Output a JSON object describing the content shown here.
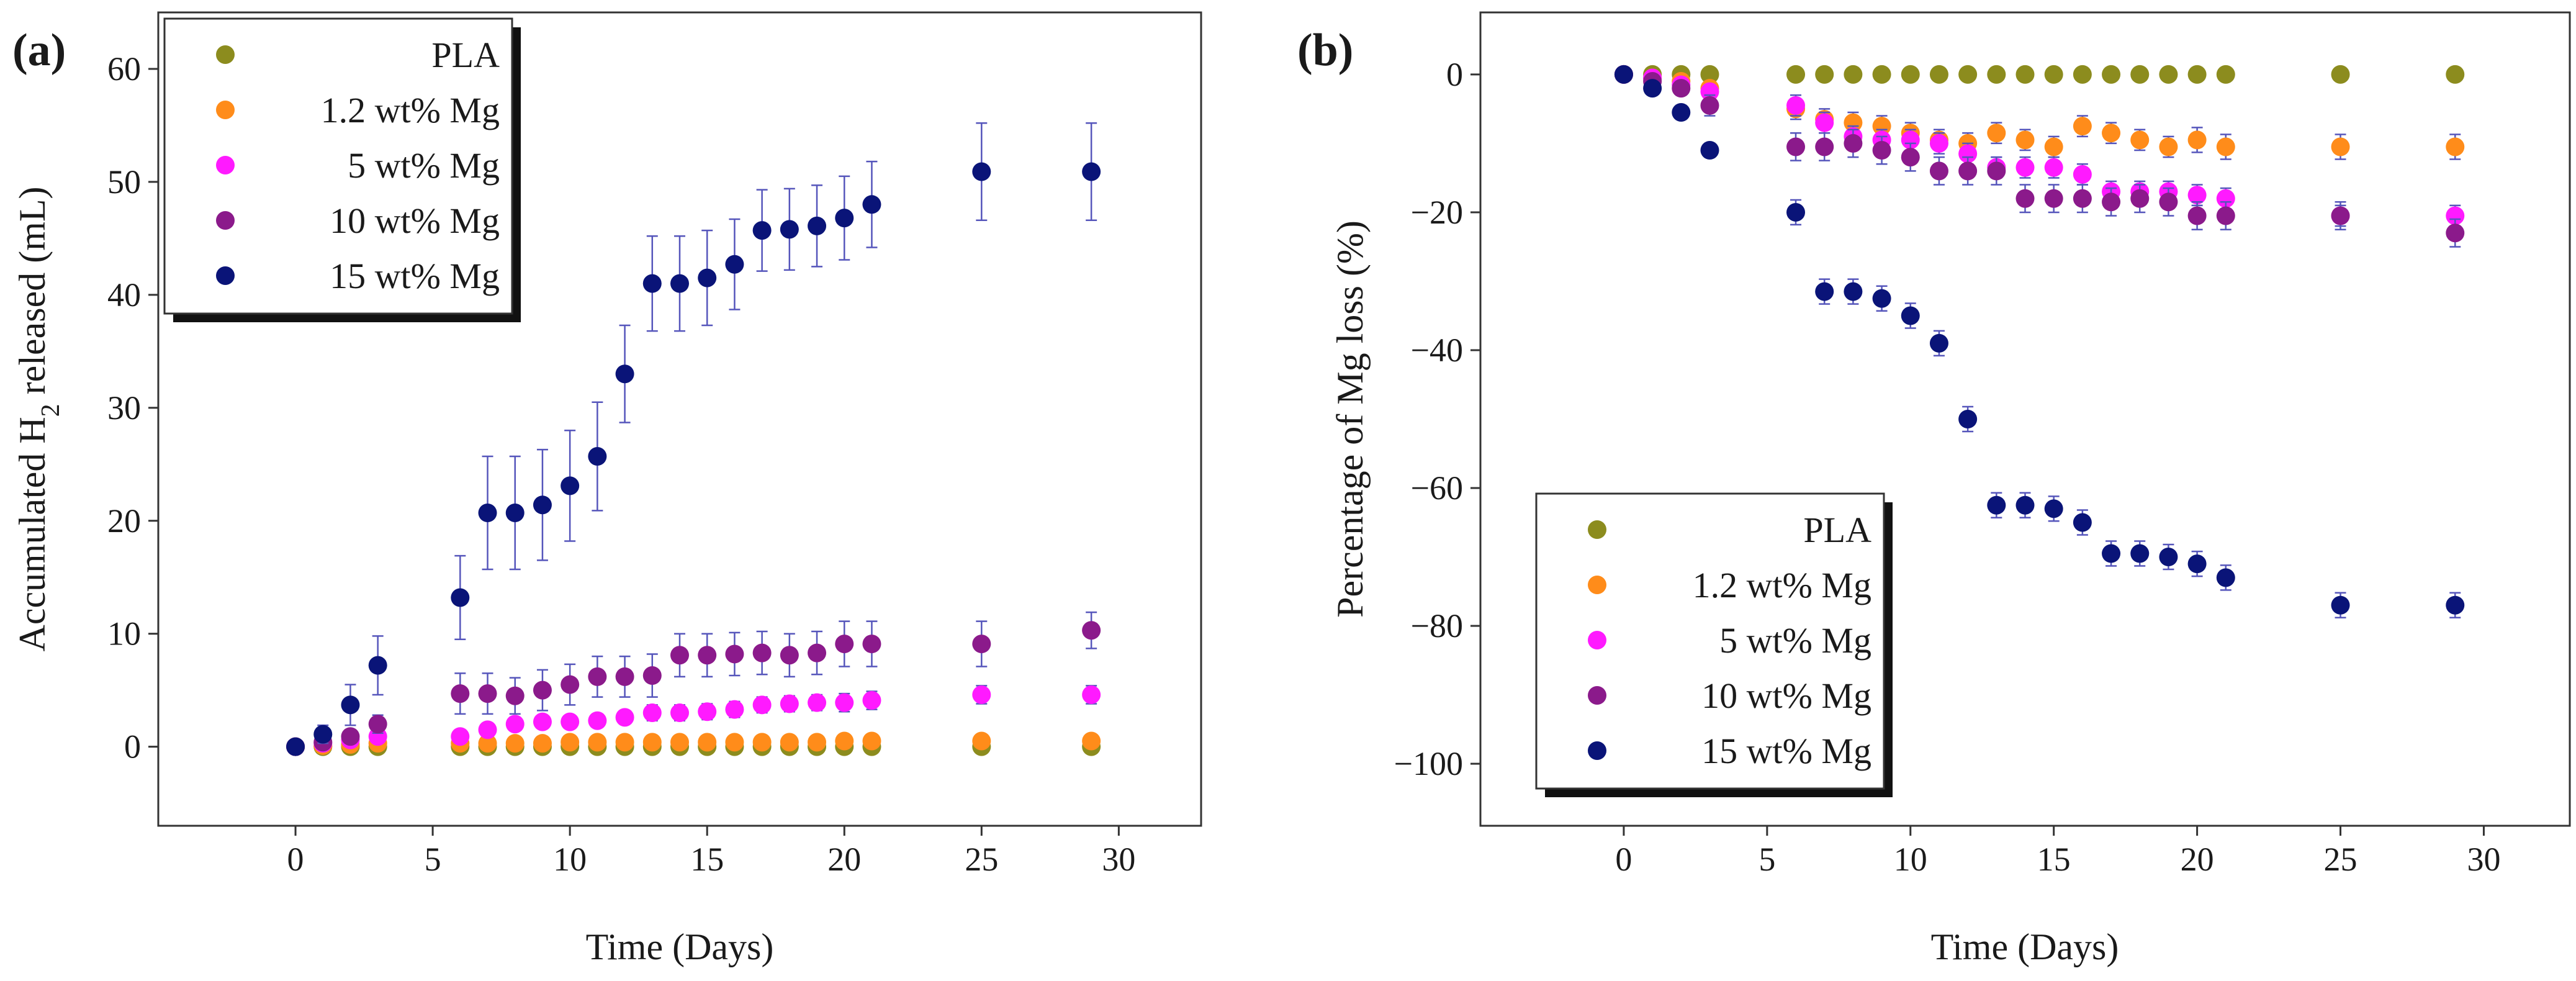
{
  "colors": {
    "PLA": "#8c8c1e",
    "1.2 wt% Mg": "#ff8c1a",
    "5 wt% Mg": "#ff1aff",
    "10 wt% Mg": "#8b1a8b",
    "15 wt% Mg": "#0a1478",
    "errorbar": "#5555bb"
  },
  "chart_data": [
    {
      "type": "scatter",
      "panel_label": "(a)",
      "xlabel": "Time (Days)",
      "ylabel_parts": [
        "Accumulated H",
        "2",
        " released (mL)"
      ],
      "xlim": [
        -5,
        33
      ],
      "ylim": [
        -7,
        65
      ],
      "xticks": [
        0,
        5,
        10,
        15,
        20,
        25,
        30
      ],
      "yticks": [
        0,
        10,
        20,
        30,
        40,
        50,
        60
      ],
      "legend_position": "top-left",
      "legend": [
        "PLA",
        "1.2 wt% Mg",
        "5 wt% Mg",
        "10 wt% Mg",
        "15 wt% Mg"
      ],
      "series": [
        {
          "name": "PLA",
          "x": [
            0,
            1,
            2,
            3,
            6,
            7,
            8,
            9,
            10,
            11,
            12,
            13,
            14,
            15,
            16,
            17,
            18,
            19,
            20,
            21,
            25,
            29
          ],
          "y": [
            0,
            0,
            0,
            0,
            0,
            0,
            0,
            0,
            0,
            0,
            0,
            0,
            0,
            0,
            0,
            0,
            0,
            0,
            0,
            0,
            0,
            0
          ],
          "err": [
            0,
            0,
            0,
            0,
            0,
            0,
            0,
            0,
            0,
            0,
            0,
            0,
            0,
            0,
            0,
            0,
            0,
            0,
            0,
            0,
            0,
            0
          ]
        },
        {
          "name": "1.2 wt% Mg",
          "x": [
            0,
            1,
            2,
            3,
            6,
            7,
            8,
            9,
            10,
            11,
            12,
            13,
            14,
            15,
            16,
            17,
            18,
            19,
            20,
            21,
            25,
            29
          ],
          "y": [
            0,
            0.1,
            0.2,
            0.3,
            0.3,
            0.3,
            0.3,
            0.3,
            0.4,
            0.4,
            0.4,
            0.4,
            0.4,
            0.4,
            0.4,
            0.4,
            0.4,
            0.4,
            0.5,
            0.5,
            0.5,
            0.5
          ],
          "err": [
            0,
            0,
            0,
            0,
            0.2,
            0.2,
            0.2,
            0.2,
            0.2,
            0.2,
            0.2,
            0.2,
            0.2,
            0.2,
            0.2,
            0.2,
            0.2,
            0.2,
            0.2,
            0.2,
            0.2,
            0.2
          ]
        },
        {
          "name": "5 wt% Mg",
          "x": [
            0,
            1,
            2,
            3,
            6,
            7,
            8,
            9,
            10,
            11,
            12,
            13,
            14,
            15,
            16,
            17,
            18,
            19,
            20,
            21,
            25,
            29
          ],
          "y": [
            0,
            0.3,
            0.6,
            0.9,
            0.9,
            1.5,
            2.0,
            2.2,
            2.2,
            2.3,
            2.6,
            3.0,
            3.0,
            3.1,
            3.3,
            3.7,
            3.8,
            3.9,
            3.9,
            4.1,
            4.6,
            4.6
          ],
          "err": [
            0,
            0.2,
            0.3,
            0.3,
            0.4,
            0.5,
            0.5,
            0.5,
            0.5,
            0.5,
            0.5,
            0.7,
            0.7,
            0.7,
            0.7,
            0.7,
            0.7,
            0.7,
            0.8,
            0.8,
            0.8,
            0.8
          ]
        },
        {
          "name": "10 wt% Mg",
          "x": [
            0,
            1,
            2,
            3,
            6,
            7,
            8,
            9,
            10,
            11,
            12,
            13,
            14,
            15,
            16,
            17,
            18,
            19,
            20,
            21,
            25,
            29
          ],
          "y": [
            0,
            0.4,
            0.9,
            2.0,
            4.7,
            4.7,
            4.5,
            5.0,
            5.5,
            6.2,
            6.2,
            6.3,
            8.1,
            8.1,
            8.2,
            8.3,
            8.1,
            8.3,
            9.1,
            9.1,
            9.1,
            10.3
          ],
          "err": [
            0,
            0.3,
            0.5,
            0.8,
            1.8,
            1.8,
            1.6,
            1.8,
            1.8,
            1.8,
            1.8,
            1.9,
            1.9,
            1.9,
            1.9,
            1.9,
            1.9,
            1.9,
            2.0,
            2.0,
            2.0,
            1.6
          ]
        },
        {
          "name": "15 wt% Mg",
          "x": [
            0,
            1,
            2,
            3,
            6,
            7,
            8,
            9,
            10,
            11,
            12,
            13,
            14,
            15,
            16,
            17,
            18,
            19,
            20,
            21,
            25,
            29
          ],
          "y": [
            0,
            1.1,
            3.7,
            7.2,
            13.2,
            20.7,
            20.7,
            21.4,
            23.1,
            25.7,
            33.0,
            41.0,
            41.0,
            41.5,
            42.7,
            45.7,
            45.8,
            46.1,
            46.8,
            48.0,
            50.9,
            50.9
          ],
          "err": [
            0,
            0.8,
            1.8,
            2.6,
            3.7,
            5.0,
            5.0,
            4.9,
            4.9,
            4.8,
            4.3,
            4.2,
            4.2,
            4.2,
            4.0,
            3.6,
            3.6,
            3.6,
            3.7,
            3.8,
            4.3,
            4.3
          ]
        }
      ]
    },
    {
      "type": "scatter",
      "panel_label": "(b)",
      "xlabel": "Time (Days)",
      "ylabel": "Percentage of Mg loss (%)",
      "xlim": [
        -5,
        33
      ],
      "ylim": [
        -109,
        9
      ],
      "xticks": [
        0,
        5,
        10,
        15,
        20,
        25,
        30
      ],
      "yticks": [
        0,
        -20,
        -40,
        -60,
        -80,
        -100
      ],
      "ytick_labels": [
        "0",
        "−20",
        "−40",
        "−60",
        "−80",
        "−100"
      ],
      "legend_position": "lower-left",
      "legend": [
        "PLA",
        "1.2 wt% Mg",
        "5 wt% Mg",
        "10 wt% Mg",
        "15 wt% Mg"
      ],
      "series": [
        {
          "name": "PLA",
          "x": [
            0,
            1,
            2,
            3,
            6,
            7,
            8,
            9,
            10,
            11,
            12,
            13,
            14,
            15,
            16,
            17,
            18,
            19,
            20,
            21,
            25,
            29
          ],
          "y": [
            0,
            0,
            0,
            0,
            0,
            0,
            0,
            0,
            0,
            0,
            0,
            0,
            0,
            0,
            0,
            0,
            0,
            0,
            0,
            0,
            0,
            0
          ],
          "err": [
            0,
            0,
            0,
            0,
            0,
            0,
            0,
            0,
            0,
            0,
            0,
            0,
            0,
            0,
            0,
            0,
            0,
            0,
            0,
            0,
            0,
            0
          ]
        },
        {
          "name": "1.2 wt% Mg",
          "x": [
            0,
            1,
            2,
            3,
            6,
            7,
            8,
            9,
            10,
            11,
            12,
            13,
            14,
            15,
            16,
            17,
            18,
            19,
            20,
            21,
            25,
            29
          ],
          "y": [
            0,
            -0.5,
            -1.0,
            -2.0,
            -5.0,
            -6.5,
            -7.0,
            -7.5,
            -8.5,
            -9.5,
            -10.0,
            -8.5,
            -9.5,
            -10.5,
            -7.5,
            -8.5,
            -9.5,
            -10.5,
            -9.5,
            -10.5,
            -10.5,
            -10.5
          ],
          "err": [
            0,
            0,
            0,
            0,
            1.5,
            1.5,
            1.5,
            1.5,
            1.5,
            1.5,
            1.5,
            1.5,
            1.5,
            1.5,
            1.5,
            1.5,
            1.5,
            1.5,
            1.8,
            1.8,
            1.8,
            1.8
          ]
        },
        {
          "name": "5 wt% Mg",
          "x": [
            0,
            1,
            2,
            3,
            6,
            7,
            8,
            9,
            10,
            11,
            12,
            13,
            14,
            15,
            16,
            17,
            18,
            19,
            20,
            21,
            25,
            29
          ],
          "y": [
            0,
            -0.5,
            -1.5,
            -2.5,
            -4.5,
            -7.0,
            -9.0,
            -9.5,
            -9.5,
            -10.0,
            -11.5,
            -13.5,
            -13.5,
            -13.5,
            -14.5,
            -17.0,
            -17.0,
            -17.0,
            -17.5,
            -18.0,
            -20.5,
            -20.5
          ],
          "err": [
            0,
            0.5,
            0.8,
            1.0,
            1.5,
            1.5,
            1.5,
            1.5,
            1.5,
            1.5,
            1.5,
            1.5,
            1.5,
            1.5,
            1.5,
            1.5,
            1.5,
            1.5,
            1.5,
            1.5,
            1.5,
            1.5
          ]
        },
        {
          "name": "10 wt% Mg",
          "x": [
            0,
            1,
            2,
            3,
            6,
            7,
            8,
            9,
            10,
            11,
            12,
            13,
            14,
            15,
            16,
            17,
            18,
            19,
            20,
            21,
            25,
            29
          ],
          "y": [
            0,
            -1.0,
            -2.0,
            -4.5,
            -10.5,
            -10.5,
            -10.0,
            -11.0,
            -12.0,
            -14.0,
            -14.0,
            -14.0,
            -18.0,
            -18.0,
            -18.0,
            -18.5,
            -18.0,
            -18.5,
            -20.5,
            -20.5,
            -20.5,
            -23.0
          ],
          "err": [
            0,
            0.5,
            1.0,
            1.5,
            2.0,
            2.0,
            2.0,
            2.0,
            2.0,
            2.0,
            2.0,
            2.0,
            2.0,
            2.0,
            2.0,
            2.0,
            2.0,
            2.0,
            2.0,
            2.0,
            2.0,
            2.0
          ]
        },
        {
          "name": "15 wt% Mg",
          "x": [
            0,
            1,
            2,
            3,
            6,
            7,
            8,
            9,
            10,
            11,
            12,
            13,
            14,
            15,
            16,
            17,
            18,
            19,
            20,
            21,
            25,
            29
          ],
          "y": [
            0,
            -2.0,
            -5.5,
            -11.0,
            -20.0,
            -31.5,
            -31.5,
            -32.5,
            -35.0,
            -39.0,
            -50.0,
            -62.5,
            -62.5,
            -63.0,
            -65.0,
            -69.5,
            -69.5,
            -70.0,
            -71.0,
            -73.0,
            -77.0,
            -77.0
          ],
          "err": [
            0,
            0.5,
            1.0,
            1.0,
            1.8,
            1.8,
            1.8,
            1.8,
            1.8,
            1.8,
            1.8,
            1.8,
            1.8,
            1.8,
            1.8,
            1.8,
            1.8,
            1.8,
            1.8,
            1.8,
            1.8,
            1.8
          ]
        }
      ]
    }
  ]
}
